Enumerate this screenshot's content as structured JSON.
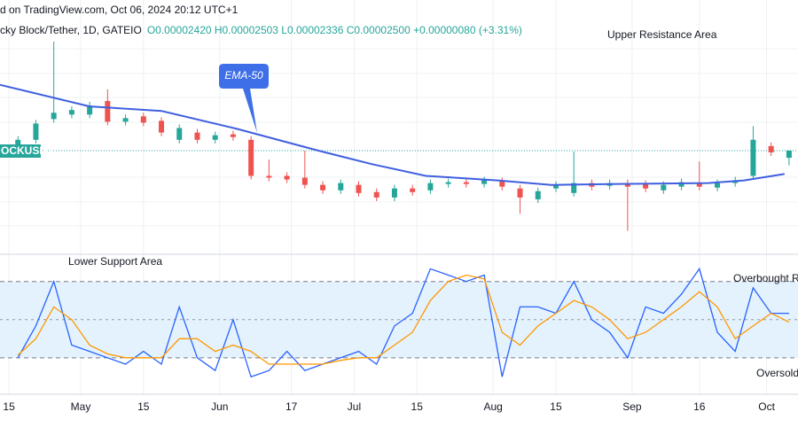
{
  "chart_data": [
    {
      "type": "candlestick",
      "source": "d on TradingView.com, Oct 06, 2024 20:12 UTC+1",
      "symbol": "cky Block/Tether, 1D, GATEIO",
      "ohlc": "O0.00002420 H0.00002503 L0.00002336 C0.00002500 +0.00000080 (+3.31%)",
      "annotations": [
        "Upper Resistance Area"
      ],
      "callout": "EMA-50",
      "price_tag": "OCKUSDT",
      "color_up": "#26a69a",
      "color_down": "#ef5350",
      "xlim": [
        -2,
        176
      ],
      "ylim": [
        1.37e-05,
        4.17e-05
      ],
      "x": [
        2,
        6,
        10,
        14,
        18,
        22,
        26,
        30,
        34,
        38,
        42,
        46,
        50,
        54,
        58,
        62,
        66,
        70,
        74,
        78,
        82,
        86,
        90,
        94,
        98,
        102,
        106,
        110,
        114,
        118,
        122,
        126,
        130,
        134,
        138,
        142,
        146,
        150,
        154,
        158,
        162,
        166,
        170,
        174
      ],
      "open": [
        2.55e-05,
        2.62e-05,
        2.85e-05,
        2.9e-05,
        2.9e-05,
        3.05e-05,
        2.82e-05,
        2.88e-05,
        2.83e-05,
        2.62e-05,
        2.7e-05,
        2.62e-05,
        2.68e-05,
        2.62e-05,
        2.22e-05,
        2.22e-05,
        2.2e-05,
        2.12e-05,
        2.06e-05,
        2.12e-05,
        2.04e-05,
        1.98e-05,
        2.08e-05,
        2.06e-05,
        2.13e-05,
        2.15e-05,
        2.13e-05,
        2.16e-05,
        2.08e-05,
        1.96e-05,
        2.08e-05,
        2.03e-05,
        2.14e-05,
        2.11e-05,
        2.14e-05,
        2.13e-05,
        2.06e-05,
        2.1e-05,
        2.14e-05,
        2.09e-05,
        2.14e-05,
        2.22e-05,
        2.55e-05,
        2.42e-05
      ],
      "high": [
        2.66e-05,
        2.84e-05,
        3.71e-05,
        2.99e-05,
        3.04e-05,
        3.18e-05,
        2.9e-05,
        2.92e-05,
        2.87e-05,
        2.79e-05,
        2.74e-05,
        2.71e-05,
        2.72e-05,
        2.66e-05,
        2.4e-05,
        2.26e-05,
        2.5e-05,
        2.16e-05,
        2.18e-05,
        2.16e-05,
        2.08e-05,
        2.12e-05,
        2.12e-05,
        2.18e-05,
        2.19e-05,
        2.19e-05,
        2.21e-05,
        2.2e-05,
        2.12e-05,
        2.09e-05,
        2.16e-05,
        2.49e-05,
        2.18e-05,
        2.18e-05,
        2.18e-05,
        2.17e-05,
        2.16e-05,
        2.19e-05,
        2.38e-05,
        2.18e-05,
        2.21e-05,
        2.77e-05,
        2.59e-05,
        2.503e-05
      ],
      "low": [
        2.51e-05,
        2.58e-05,
        2.81e-05,
        2.86e-05,
        2.86e-05,
        2.78e-05,
        2.78e-05,
        2.77e-05,
        2.66e-05,
        2.58e-05,
        2.58e-05,
        2.58e-05,
        2.61e-05,
        2.18e-05,
        2.16e-05,
        2.14e-05,
        2.08e-05,
        2.02e-05,
        2.02e-05,
        1.99e-05,
        1.94e-05,
        1.94e-05,
        2e-05,
        2.02e-05,
        2.09e-05,
        2.09e-05,
        2.09e-05,
        2.06e-05,
        1.8e-05,
        1.92e-05,
        2.04e-05,
        1.99e-05,
        2.06e-05,
        2.07e-05,
        1.61e-05,
        2.04e-05,
        2.02e-05,
        2.06e-05,
        2.06e-05,
        2.05e-05,
        2.1e-05,
        2.18e-05,
        2.44e-05,
        2.336e-05
      ],
      "close": [
        2.62e-05,
        2.8e-05,
        2.92e-05,
        2.95e-05,
        3e-05,
        2.82e-05,
        2.86e-05,
        2.81e-05,
        2.7e-05,
        2.75e-05,
        2.62e-05,
        2.67e-05,
        2.65e-05,
        2.22e-05,
        2.2e-05,
        2.18e-05,
        2.12e-05,
        2.06e-05,
        2.14e-05,
        2.03e-05,
        1.98e-05,
        2.08e-05,
        2.04e-05,
        2.14e-05,
        2.15e-05,
        2.13e-05,
        2.17e-05,
        2.1e-05,
        1.98e-05,
        2.05e-05,
        2.12e-05,
        2.14e-05,
        2.1e-05,
        2.14e-05,
        2.1e-05,
        2.08e-05,
        2.12e-05,
        2.15e-05,
        2.1e-05,
        2.14e-05,
        2.17e-05,
        2.62e-05,
        2.48e-05,
        2.5e-05
      ],
      "overlay": {
        "type": "line",
        "name": "EMA-50",
        "color": "#3f5fe0",
        "x": [
          -2,
          18,
          34,
          51,
          69,
          81,
          93,
          109,
          121,
          136,
          156,
          164,
          173
        ],
        "values": [
          3.23e-05,
          2.99e-05,
          2.94e-05,
          2.74e-05,
          2.5e-05,
          2.35e-05,
          2.22e-05,
          2.17e-05,
          2.12e-05,
          2.13e-05,
          2.14e-05,
          2.17e-05,
          2.24e-05
        ]
      }
    },
    {
      "type": "line",
      "annotations": [
        "Lower Support Area",
        "Overbought R",
        "Oversold"
      ],
      "xlim": [
        -2,
        176
      ],
      "ylim": [
        -8,
        100
      ],
      "bands": [
        20,
        80
      ],
      "midline": 50,
      "band_color": "#e3f2fd",
      "xticks": [
        {
          "value": 0,
          "label": "15"
        },
        {
          "value": 16,
          "label": "May"
        },
        {
          "value": 30,
          "label": "15"
        },
        {
          "value": 47,
          "label": "Jun"
        },
        {
          "value": 63,
          "label": "17"
        },
        {
          "value": 77,
          "label": "Jul"
        },
        {
          "value": 91,
          "label": "15"
        },
        {
          "value": 108,
          "label": "Aug"
        },
        {
          "value": 122,
          "label": "15"
        },
        {
          "value": 139,
          "label": "Sep"
        },
        {
          "value": 154,
          "label": "16"
        },
        {
          "value": 169,
          "label": "Oct"
        }
      ],
      "x": [
        2,
        6,
        10,
        14,
        18,
        22,
        26,
        30,
        34,
        38,
        42,
        46,
        50,
        54,
        58,
        62,
        66,
        70,
        74,
        78,
        82,
        86,
        90,
        94,
        98,
        102,
        106,
        110,
        114,
        118,
        122,
        126,
        130,
        134,
        138,
        142,
        146,
        150,
        154,
        158,
        162,
        166,
        170,
        174
      ],
      "series": [
        {
          "color": "#2962ff",
          "values": [
            20,
            45,
            80,
            30,
            25,
            20,
            15,
            25,
            15,
            60,
            20,
            10,
            50,
            5,
            10,
            25,
            10,
            15,
            20,
            25,
            15,
            45,
            55,
            90,
            85,
            80,
            85,
            5,
            60,
            60,
            55,
            80,
            50,
            40,
            20,
            60,
            55,
            70,
            90,
            40,
            25,
            75,
            55,
            55
          ]
        },
        {
          "color": "#ff9800",
          "values": [
            22,
            35,
            60,
            50,
            30,
            23,
            20,
            20,
            20,
            35,
            35,
            25,
            30,
            25,
            15,
            15,
            15,
            15,
            18,
            20,
            20,
            30,
            40,
            65,
            80,
            85,
            82,
            40,
            30,
            45,
            55,
            65,
            60,
            50,
            35,
            40,
            50,
            60,
            72,
            60,
            35,
            45,
            55,
            48
          ]
        }
      ]
    }
  ]
}
